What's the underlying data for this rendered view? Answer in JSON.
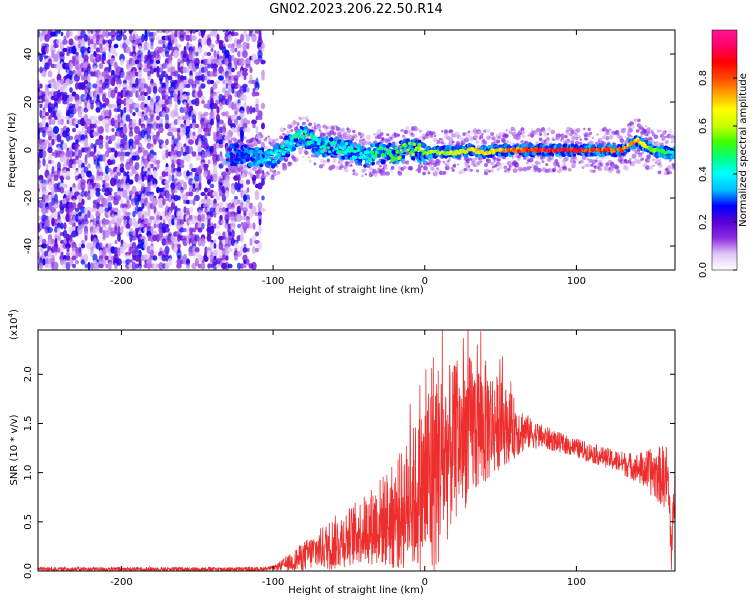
{
  "title": "GN02.2023.206.22.50.R14",
  "chart_data": [
    {
      "type": "heatmap",
      "xlabel": "Height of straight line (km)",
      "ylabel": "Frequency (Hz)",
      "xlim": [
        -255,
        165
      ],
      "ylim": [
        -50,
        50
      ],
      "xticks": [
        -200,
        -100,
        0,
        100
      ],
      "yticks": [
        -40,
        -20,
        0,
        20,
        40
      ],
      "colorbar": {
        "label": "Normalized spectral amplitude",
        "range": [
          0,
          1
        ],
        "ticks": [
          "0.0",
          "0.2",
          "0.4",
          "0.6",
          "0.8"
        ],
        "colormap": [
          "#ffffff",
          "#e0c6f5",
          "#8a2be2",
          "#5a00d6",
          "#0000ff",
          "#00bfff",
          "#00ffff",
          "#00ff80",
          "#40ff00",
          "#c8ff00",
          "#ffff00",
          "#ffa500",
          "#ff4500",
          "#ff0000",
          "#ff0066",
          "#ff1493"
        ]
      },
      "noise_region_x": [
        -255,
        -110
      ],
      "ridge": {
        "x": [
          -130,
          -120,
          -110,
          -100,
          -90,
          -80,
          -70,
          -60,
          -50,
          -40,
          -30,
          -20,
          -10,
          0,
          10,
          20,
          30,
          40,
          50,
          60,
          70,
          80,
          90,
          100,
          110,
          120,
          130,
          140,
          150,
          160,
          165
        ],
        "y": [
          -2,
          -2,
          -3,
          -3,
          2,
          6,
          2,
          1,
          0,
          -3,
          -1,
          -2,
          1,
          -1,
          -1,
          -1,
          0,
          -1,
          0,
          0,
          0,
          0,
          0,
          0,
          0,
          0,
          0,
          4,
          0,
          -1,
          -1
        ],
        "amplitude": [
          0.2,
          0.3,
          0.35,
          0.4,
          0.45,
          0.5,
          0.45,
          0.45,
          0.45,
          0.45,
          0.5,
          0.55,
          0.6,
          0.6,
          0.65,
          0.65,
          0.7,
          0.7,
          0.75,
          0.8,
          0.9,
          0.9,
          0.9,
          0.9,
          0.9,
          0.85,
          0.8,
          0.75,
          0.6,
          0.5,
          0.4
        ]
      }
    },
    {
      "type": "line",
      "xlabel": "Height of straight line (km)",
      "ylabel": "SNR (10 * v/v)",
      "y_multiplier": "(x10",
      "y_multiplier_exp": "4",
      "y_multiplier_close": ")",
      "xlim": [
        -255,
        165
      ],
      "ylim": [
        0,
        2.45
      ],
      "xticks": [
        -200,
        -100,
        0,
        100
      ],
      "yticks": [
        "0.0",
        "0.5",
        "1.0",
        "1.5",
        "2.0"
      ],
      "color": "#ee2d2d",
      "envelope": {
        "x": [
          -255,
          -200,
          -150,
          -110,
          -100,
          -90,
          -80,
          -70,
          -60,
          -50,
          -40,
          -30,
          -20,
          -10,
          0,
          5,
          10,
          20,
          30,
          40,
          50,
          60,
          70,
          80,
          90,
          100,
          110,
          120,
          130,
          140,
          150,
          160,
          163,
          165
        ],
        "mean": [
          0.02,
          0.02,
          0.02,
          0.02,
          0.03,
          0.08,
          0.15,
          0.22,
          0.28,
          0.35,
          0.42,
          0.5,
          0.55,
          0.7,
          0.85,
          1.05,
          1.1,
          1.3,
          1.45,
          1.5,
          1.5,
          1.45,
          1.4,
          1.35,
          1.3,
          1.25,
          1.2,
          1.15,
          1.1,
          1.05,
          1.0,
          0.95,
          0.2,
          0.9
        ],
        "spread": [
          0.02,
          0.02,
          0.02,
          0.02,
          0.02,
          0.08,
          0.15,
          0.2,
          0.28,
          0.3,
          0.35,
          0.45,
          0.55,
          0.7,
          0.9,
          1.3,
          1.0,
          0.8,
          0.75,
          0.65,
          0.45,
          0.3,
          0.15,
          0.12,
          0.1,
          0.1,
          0.1,
          0.1,
          0.12,
          0.15,
          0.25,
          0.35,
          0.3,
          0.3
        ]
      }
    }
  ]
}
